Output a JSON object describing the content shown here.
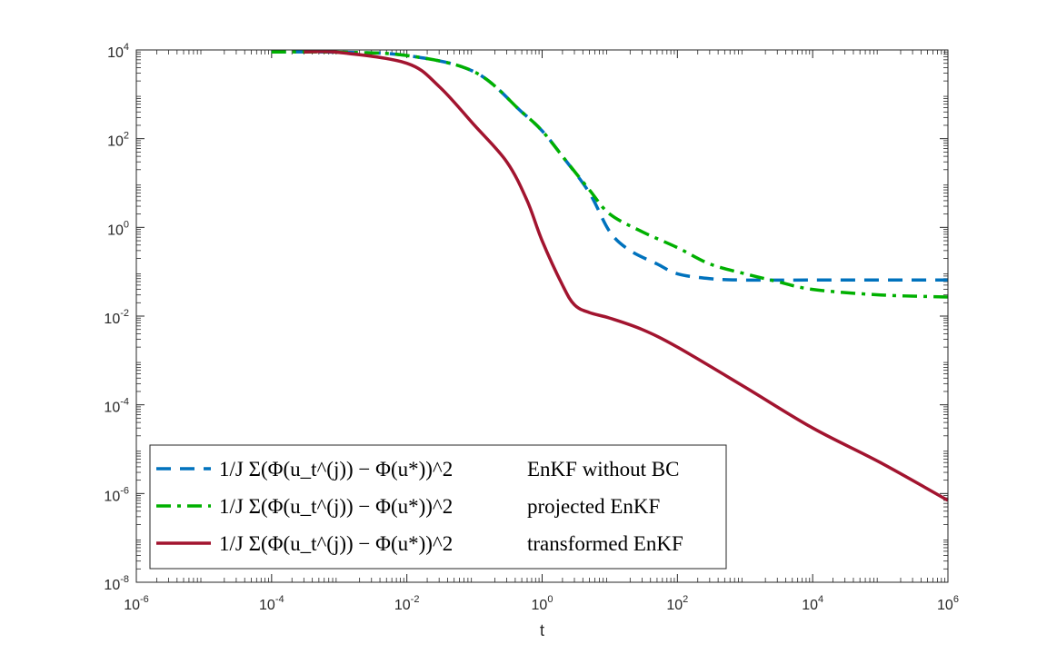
{
  "chart_data": {
    "type": "line",
    "title": "",
    "xlabel": "t",
    "ylabel": "",
    "xscale": "log",
    "yscale": "log",
    "xlim": [
      1e-06,
      1000000.0
    ],
    "ylim": [
      1e-08,
      10000.0
    ],
    "x_ticks": [
      {
        "base": "10",
        "exp": "-6"
      },
      {
        "base": "10",
        "exp": "-4"
      },
      {
        "base": "10",
        "exp": "-2"
      },
      {
        "base": "10",
        "exp": "0"
      },
      {
        "base": "10",
        "exp": "2"
      },
      {
        "base": "10",
        "exp": "4"
      },
      {
        "base": "10",
        "exp": "6"
      }
    ],
    "y_ticks": [
      {
        "base": "10",
        "exp": "4"
      },
      {
        "base": "10",
        "exp": "2"
      },
      {
        "base": "10",
        "exp": "0"
      },
      {
        "base": "10",
        "exp": "-2"
      },
      {
        "base": "10",
        "exp": "-4"
      },
      {
        "base": "10",
        "exp": "-6"
      },
      {
        "base": "10",
        "exp": "-8"
      }
    ],
    "legend_position": "bottom-left",
    "series": [
      {
        "name": "EnKF without BC",
        "legend_expr": "1/J Σ(Φ(u_t^(j)) − Φ(u*))^2",
        "legend_label": "EnKF without BC",
        "color": "#0072BD",
        "style": "dashed",
        "points": [
          [
            0.0001,
            9000
          ],
          [
            0.001,
            8900
          ],
          [
            0.01,
            7500
          ],
          [
            0.1,
            3200
          ],
          [
            0.5,
            400
          ],
          [
            1,
            150
          ],
          [
            2,
            40
          ],
          [
            5,
            6
          ],
          [
            10,
            0.8
          ],
          [
            20,
            0.3
          ],
          [
            50,
            0.15
          ],
          [
            100,
            0.09
          ],
          [
            300,
            0.07
          ],
          [
            1000,
            0.065
          ],
          [
            10000,
            0.065
          ],
          [
            1000000.0,
            0.065
          ]
        ]
      },
      {
        "name": "projected EnKF",
        "legend_expr": "1/J Σ(Φ(u_t^(j)) − Φ(u*))^2",
        "legend_label": "projected EnKF",
        "color": "#00B000",
        "style": "dashdot",
        "points": [
          [
            0.0001,
            9000
          ],
          [
            0.001,
            8900
          ],
          [
            0.01,
            7500
          ],
          [
            0.1,
            3200
          ],
          [
            0.5,
            400
          ],
          [
            1,
            150
          ],
          [
            2,
            40
          ],
          [
            5,
            7
          ],
          [
            10,
            2.0
          ],
          [
            30,
            0.8
          ],
          [
            100,
            0.35
          ],
          [
            300,
            0.15
          ],
          [
            1000,
            0.09
          ],
          [
            3000,
            0.06
          ],
          [
            10000,
            0.04
          ],
          [
            100000.0,
            0.03
          ],
          [
            1000000.0,
            0.027
          ]
        ]
      },
      {
        "name": "transformed EnKF",
        "legend_expr": "1/J Σ(Φ(u_t^(j)) − Φ(u*))^2",
        "legend_label": "transformed EnKF",
        "color": "#A2142F",
        "style": "solid",
        "points": [
          [
            0.0003,
            9000
          ],
          [
            0.001,
            8800
          ],
          [
            0.01,
            5000
          ],
          [
            0.03,
            1500
          ],
          [
            0.1,
            200
          ],
          [
            0.3,
            30
          ],
          [
            0.6,
            4
          ],
          [
            1,
            0.5
          ],
          [
            2,
            0.05
          ],
          [
            3,
            0.018
          ],
          [
            5,
            0.012
          ],
          [
            10,
            0.009
          ],
          [
            30,
            0.005
          ],
          [
            100,
            0.002
          ],
          [
            1000,
            0.00025
          ],
          [
            10000,
            3e-05
          ],
          [
            100000.0,
            5e-06
          ],
          [
            1000000.0,
            7e-07
          ]
        ]
      }
    ]
  }
}
